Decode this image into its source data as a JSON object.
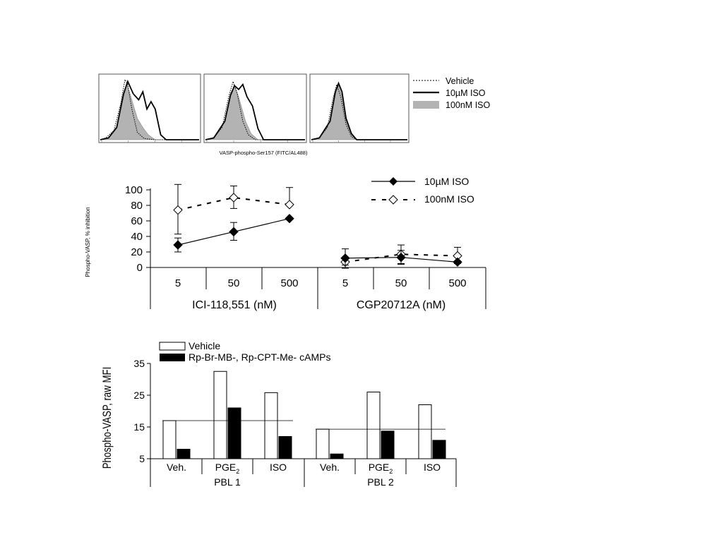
{
  "chart_data": [
    {
      "type": "area",
      "xlabel": "VASP-phospho-Ser157 (FITC/AL488)",
      "legend": {
        "position": "right",
        "entries": [
          {
            "label": "Vehicle",
            "style": "dotted"
          },
          {
            "label": "10µM ISO",
            "style": "solid"
          },
          {
            "label": "100nM ISO",
            "style": "filled-gray"
          }
        ]
      },
      "panels": [
        {
          "vehicle": [
            [
              0,
              0
            ],
            [
              0.2,
              0.03
            ],
            [
              0.5,
              0.15
            ],
            [
              0.75,
              0.6
            ],
            [
              0.9,
              0.98
            ],
            [
              1.0,
              0.9
            ],
            [
              1.15,
              0.5
            ],
            [
              1.35,
              0.12
            ],
            [
              1.6,
              0.02
            ],
            [
              2,
              0
            ],
            [
              3.6,
              0
            ]
          ],
          "iso10uM": [
            [
              0,
              0
            ],
            [
              0.3,
              0.03
            ],
            [
              0.6,
              0.2
            ],
            [
              0.85,
              0.75
            ],
            [
              1.0,
              0.95
            ],
            [
              1.2,
              0.75
            ],
            [
              1.4,
              0.65
            ],
            [
              1.55,
              0.78
            ],
            [
              1.7,
              0.5
            ],
            [
              1.85,
              0.62
            ],
            [
              2.0,
              0.5
            ],
            [
              2.2,
              0.08
            ],
            [
              2.4,
              0
            ],
            [
              3.6,
              0
            ]
          ],
          "iso100nM": [
            [
              0,
              0
            ],
            [
              0.3,
              0.03
            ],
            [
              0.6,
              0.2
            ],
            [
              0.85,
              0.72
            ],
            [
              0.98,
              0.9
            ],
            [
              1.15,
              0.65
            ],
            [
              1.35,
              0.35
            ],
            [
              1.55,
              0.2
            ],
            [
              1.75,
              0.08
            ],
            [
              2.0,
              0
            ],
            [
              3.6,
              0
            ]
          ]
        },
        {
          "vehicle": [
            [
              0,
              0
            ],
            [
              0.3,
              0.03
            ],
            [
              0.6,
              0.2
            ],
            [
              0.85,
              0.72
            ],
            [
              1.0,
              0.95
            ],
            [
              1.15,
              0.75
            ],
            [
              1.35,
              0.3
            ],
            [
              1.55,
              0.08
            ],
            [
              1.8,
              0
            ],
            [
              3.6,
              0
            ]
          ],
          "iso10uM": [
            [
              0,
              0
            ],
            [
              0.3,
              0.03
            ],
            [
              0.7,
              0.3
            ],
            [
              0.9,
              0.72
            ],
            [
              1.05,
              0.88
            ],
            [
              1.2,
              0.82
            ],
            [
              1.35,
              0.9
            ],
            [
              1.5,
              0.7
            ],
            [
              1.7,
              0.55
            ],
            [
              1.9,
              0.18
            ],
            [
              2.1,
              0
            ],
            [
              3.6,
              0
            ]
          ],
          "iso100nM": [
            [
              0,
              0
            ],
            [
              0.3,
              0.03
            ],
            [
              0.7,
              0.3
            ],
            [
              0.9,
              0.75
            ],
            [
              1.05,
              0.88
            ],
            [
              1.2,
              0.7
            ],
            [
              1.45,
              0.3
            ],
            [
              1.65,
              0.1
            ],
            [
              1.9,
              0
            ],
            [
              3.6,
              0
            ]
          ]
        },
        {
          "vehicle": [
            [
              0,
              0
            ],
            [
              0.3,
              0.03
            ],
            [
              0.6,
              0.2
            ],
            [
              0.8,
              0.65
            ],
            [
              0.95,
              0.9
            ],
            [
              1.1,
              0.7
            ],
            [
              1.3,
              0.25
            ],
            [
              1.5,
              0.05
            ],
            [
              1.7,
              0
            ],
            [
              3.6,
              0
            ]
          ],
          "iso10uM": [
            [
              0,
              0
            ],
            [
              0.3,
              0.03
            ],
            [
              0.7,
              0.3
            ],
            [
              0.9,
              0.78
            ],
            [
              1.02,
              0.92
            ],
            [
              1.15,
              0.78
            ],
            [
              1.3,
              0.35
            ],
            [
              1.5,
              0.1
            ],
            [
              1.7,
              0
            ],
            [
              3.6,
              0
            ]
          ],
          "iso100nM": [
            [
              0,
              0
            ],
            [
              0.3,
              0.03
            ],
            [
              0.7,
              0.3
            ],
            [
              0.9,
              0.75
            ],
            [
              1.02,
              0.88
            ],
            [
              1.15,
              0.72
            ],
            [
              1.3,
              0.3
            ],
            [
              1.5,
              0.08
            ],
            [
              1.7,
              0
            ],
            [
              3.6,
              0
            ]
          ]
        }
      ]
    },
    {
      "type": "line",
      "ylabel": "Phospho-VASP, % inhibition",
      "ylim": [
        0,
        100
      ],
      "yticks": [
        "0",
        "20",
        "40",
        "60",
        "80",
        "100"
      ],
      "categories": [
        "5",
        "50",
        "500",
        "5",
        "50",
        "500"
      ],
      "groups": [
        "ICI-118,551 (nM)",
        "CGP20712A (nM)"
      ],
      "legend": {
        "position": "top-right"
      },
      "series": [
        {
          "name": "10µM ISO",
          "marker": "filled-diamond",
          "line": "solid",
          "groups": [
            {
              "y": [
                29,
                46,
                63
              ],
              "err_low": [
                20,
                35,
                63
              ],
              "err_high": [
                38,
                58,
                63
              ]
            },
            {
              "y": [
                12,
                13,
                7
              ],
              "err_low": [
                3,
                4,
                7
              ],
              "err_high": [
                24,
                22,
                7
              ]
            }
          ]
        },
        {
          "name": "100nM ISO",
          "marker": "open-diamond",
          "line": "dashed",
          "groups": [
            {
              "y": [
                74,
                90,
                81
              ],
              "err_low": [
                43,
                76,
                81
              ],
              "err_high": [
                107,
                105,
                103
              ]
            },
            {
              "y": [
                7,
                17,
                15
              ],
              "err_low": [
                -1,
                5,
                5
              ],
              "err_high": [
                7,
                29,
                26
              ]
            }
          ]
        }
      ]
    },
    {
      "type": "bar",
      "ylabel": "Phospho-VASP, raw MFI",
      "ylim": [
        5,
        35
      ],
      "yticks": [
        "5",
        "15",
        "25",
        "35"
      ],
      "categories": [
        "Veh.",
        "PGE",
        "ISO",
        "Veh.",
        "PGE",
        "ISO"
      ],
      "subscripts": [
        "",
        "2",
        "",
        "",
        "2",
        ""
      ],
      "groups": [
        "PBL 1",
        "PBL 2"
      ],
      "reference_lines": [
        17,
        14.3
      ],
      "legend": {
        "position": "top-left"
      },
      "series": [
        {
          "name": "Vehicle",
          "fill": "#ffffff",
          "values": [
            17,
            32.5,
            25.8,
            14.3,
            26,
            22
          ]
        },
        {
          "name": "Rp-Br-MB-, Rp-CPT-Me- cAMPs",
          "fill": "#000000",
          "values": [
            8,
            21,
            12,
            6.5,
            13.7,
            10.8
          ]
        }
      ]
    }
  ]
}
